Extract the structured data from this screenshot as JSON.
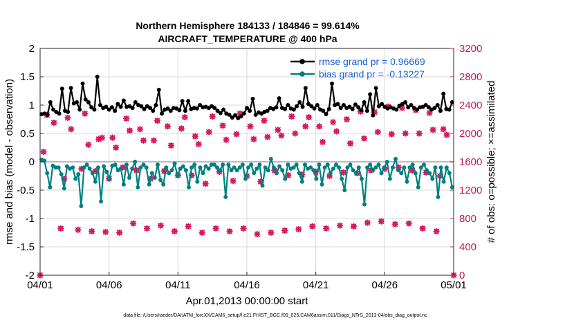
{
  "chart_data": {
    "type": "line",
    "title_line1": "Northern Hemisphere 184133 / 184846 = 99.614%",
    "title_line2": "AIRCRAFT_TEMPERATURE @ 400 hPa",
    "xlabel": "Apr.01,2013 00:00:00 start",
    "ylabel_left": "rmse and bias (model - observation)",
    "ylabel_right": "# of obs: o=possible; ×=assimilated",
    "footer": "data file: /Users/raeder/DAI/ATM_forcXX/CAM6_setup/f.e21.FHIST_BGC.f09_025.CAM6assim.011/Diags_NTrS_2013-04/obs_diag_output.nc",
    "xlim": [
      0,
      30
    ],
    "ylim_left": [
      -2,
      2
    ],
    "ylim_right": [
      0,
      3200
    ],
    "x_ticks": [
      0,
      5,
      10,
      15,
      20,
      25,
      30
    ],
    "x_tick_labels": [
      "04/01",
      "04/06",
      "04/11",
      "04/16",
      "04/21",
      "04/26",
      "05/01"
    ],
    "y_left_ticks": [
      -2,
      -1.5,
      -1,
      -0.5,
      0,
      0.5,
      1,
      1.5,
      2
    ],
    "y_left_tick_labels": [
      "-2",
      "-1.5",
      "-1",
      "-0.5",
      "0",
      "0.5",
      "1",
      "1.5",
      "2"
    ],
    "y_right_ticks": [
      0,
      400,
      800,
      1200,
      1600,
      2000,
      2400,
      2800,
      3200
    ],
    "y_right_tick_labels": [
      "0",
      "400",
      "800",
      "1200",
      "1600",
      "2000",
      "2400",
      "2800",
      "3200"
    ],
    "grid": true,
    "legend_position": "top-right",
    "colors": {
      "rmse": "#000000",
      "bias": "#008080",
      "obs": "#d4145a",
      "right_axis": "#c2185b",
      "legend_text": "#1560d4",
      "grid": "#d9d9d9",
      "zero_line": "#bbbbbb"
    },
    "series": [
      {
        "name": "rmse grand pr = 0.96669",
        "key": "rmse",
        "axis": "left",
        "values": [
          0.84,
          0.85,
          0.83,
          1.05,
          0.92,
          0.88,
          0.85,
          1.29,
          0.9,
          0.88,
          1.3,
          1.03,
          1.05,
          0.92,
          1.38,
          1.1,
          1.05,
          0.96,
          0.92,
          1.5,
          1.0,
          0.95,
          0.97,
          0.92,
          0.96,
          0.9,
          1.02,
          0.97,
          1.08,
          0.97,
          0.98,
          0.95,
          1.05,
          1.0,
          0.98,
          0.93,
          0.98,
          0.95,
          0.9,
          1.0,
          1.27,
          0.85,
          0.92,
          0.94,
          0.9,
          0.95,
          0.94,
          0.91,
          1.07,
          0.9,
          1.07,
          0.93,
          0.95,
          0.94,
          1.0,
          0.96,
          0.97,
          0.95,
          0.98,
          0.95,
          0.9,
          0.86,
          0.92,
          0.85,
          0.83,
          0.78,
          0.82,
          0.77,
          0.8,
          0.85,
          0.95,
          0.9,
          1.11,
          0.83,
          0.87,
          0.85,
          0.88,
          0.9,
          0.95,
          0.93,
          0.96,
          1.12,
          0.95,
          0.93,
          1.0,
          0.94,
          0.92,
          0.98,
          1.05,
          0.97,
          1.3,
          1.02,
          0.98,
          0.94,
          1.0,
          0.92,
          0.9,
          0.84,
          0.93,
          1.38,
          1.0,
          1.02,
          0.95,
          1.0,
          0.95,
          0.97,
          0.93,
          1.01,
          0.96,
          0.91,
          1.05,
          0.9,
          1.19,
          0.82,
          1.3,
          0.98,
          1.02,
          0.97,
          0.94,
          0.96,
          0.94,
          0.92,
          0.99,
          1.02,
          1.05,
          0.96,
          1.0,
          0.95,
          0.92,
          0.96,
          0.97,
          1.0,
          0.96,
          0.92,
          0.95,
          1.0,
          0.9,
          1.2,
          0.93,
          0.92,
          1.05
        ]
      },
      {
        "name": "bias grand pr = -0.13227",
        "key": "bias",
        "axis": "left",
        "values": [
          0.04,
          0.02,
          -0.2,
          -0.45,
          -0.07,
          -0.1,
          -0.1,
          -0.22,
          -0.47,
          -0.08,
          -0.12,
          -0.1,
          -0.3,
          -0.22,
          -0.78,
          -0.1,
          -0.05,
          -0.12,
          -0.2,
          -0.35,
          -0.1,
          -0.7,
          -0.08,
          -0.18,
          -0.3,
          -0.07,
          -0.05,
          -0.15,
          -0.12,
          -0.4,
          -0.05,
          -0.28,
          -0.12,
          0.0,
          -0.45,
          -0.1,
          -0.05,
          -0.1,
          -0.4,
          -0.2,
          -0.28,
          -0.05,
          -0.32,
          -0.4,
          -0.1,
          -0.2,
          -0.15,
          -0.03,
          -0.25,
          -0.12,
          -0.08,
          -0.15,
          -0.45,
          -0.1,
          -0.05,
          -0.35,
          -0.1,
          -0.2,
          -0.08,
          -0.12,
          -0.05,
          -0.05,
          -0.1,
          -0.15,
          -0.05,
          -0.62,
          -0.05,
          -0.15,
          -0.1,
          -0.15,
          -0.1,
          -0.05,
          -0.3,
          -0.1,
          -0.05,
          -0.2,
          -0.12,
          -0.05,
          -0.42,
          -0.1,
          -0.15,
          0.05,
          -0.1,
          -0.2,
          -0.08,
          -0.15,
          -0.3,
          -0.05,
          -0.12,
          -0.1,
          -0.05,
          -0.2,
          -0.35,
          -0.05,
          -0.12,
          -0.1,
          -0.15,
          -0.3,
          -0.05,
          -0.4,
          -0.1,
          -0.05,
          -0.2,
          -0.12,
          -0.05,
          -0.1,
          -0.3,
          -0.5,
          -0.1,
          -0.05,
          -0.15,
          -0.2,
          -0.1,
          -0.3,
          -0.75,
          -0.1,
          -0.05,
          -0.15,
          -0.1,
          -0.05,
          -0.2,
          -0.1,
          0.0,
          -0.3,
          -0.1,
          0.05,
          -0.15,
          -0.2,
          -0.1,
          -0.35,
          -0.1,
          -0.05,
          -0.2,
          -0.45,
          -0.1,
          -0.05,
          -0.15,
          -0.2,
          -0.3,
          -0.1,
          -0.62,
          -0.1,
          -0.35,
          -0.1,
          -0.2,
          -0.45
        ]
      },
      {
        "name": "# of obs possible / assimilated",
        "key": "obs",
        "axis": "right",
        "values": [
          0,
          1740,
          2260,
          2150,
          660,
          1360,
          2220,
          2060,
          640,
          1500,
          2280,
          1840,
          620,
          1470,
          1920,
          1940,
          610,
          1360,
          1940,
          1800,
          600,
          1520,
          2210,
          2040,
          730,
          1480,
          2060,
          1900,
          660,
          1360,
          1900,
          2180,
          700,
          1470,
          2100,
          1830,
          620,
          1410,
          2070,
          2230,
          690,
          1410,
          1960,
          1850,
          600,
          1290,
          2020,
          2240,
          660,
          1460,
          2110,
          1910,
          620,
          1330,
          1990,
          2280,
          660,
          1400,
          2100,
          1920,
          580,
          1320,
          2180,
          1950,
          600,
          1480,
          2050,
          1970,
          630,
          1410,
          2240,
          2000,
          650,
          1420,
          2100,
          2230,
          690,
          1460,
          2100,
          1880,
          660,
          1400,
          2160,
          2030,
          700,
          1450,
          2200,
          1860,
          690,
          1440,
          2310,
          1930,
          740,
          1480,
          2300,
          2020,
          760,
          1500,
          2380,
          1990,
          720,
          1520,
          2360,
          2000,
          730,
          1480,
          2330,
          2000,
          660,
          1450,
          2290,
          2050,
          620,
          1400,
          2060,
          1980,
          0
        ]
      }
    ],
    "obs_x": [
      0,
      0.25,
      0.5,
      1,
      1.5,
      1.75,
      2,
      2.25,
      2.75,
      3,
      3.25,
      3.5,
      3.75,
      4,
      4.25,
      4.5,
      4.75,
      5,
      5.25,
      5.5,
      5.75,
      6,
      6.25,
      6.5,
      6.75,
      7,
      7.25,
      7.5,
      7.75,
      8,
      8.25,
      8.5,
      8.75,
      9,
      9.25,
      9.5,
      9.75,
      10,
      10.25,
      10.5,
      10.75,
      11,
      11.25,
      11.5,
      11.75,
      12,
      12.25,
      12.5,
      12.75,
      13,
      13.25,
      13.5,
      13.75,
      14,
      14.25,
      14.5,
      14.75,
      15,
      15.25,
      15.5,
      15.75,
      16,
      16.25,
      16.5,
      16.75,
      17,
      17.25,
      17.5,
      17.75,
      18,
      18.25,
      18.5,
      18.75,
      19,
      19.25,
      19.5,
      19.75,
      20,
      20.25,
      20.5,
      20.75,
      21,
      21.25,
      21.5,
      21.75,
      22,
      22.25,
      22.5,
      22.75,
      23,
      23.25,
      23.5,
      23.75,
      24,
      24.25,
      24.5,
      24.75,
      25,
      25.25,
      25.5,
      25.75,
      26,
      26.25,
      26.5,
      26.75,
      27,
      27.25,
      27.5,
      27.75,
      28,
      28.25,
      28.5,
      28.75,
      29,
      29.25,
      29.5,
      30
    ]
  }
}
